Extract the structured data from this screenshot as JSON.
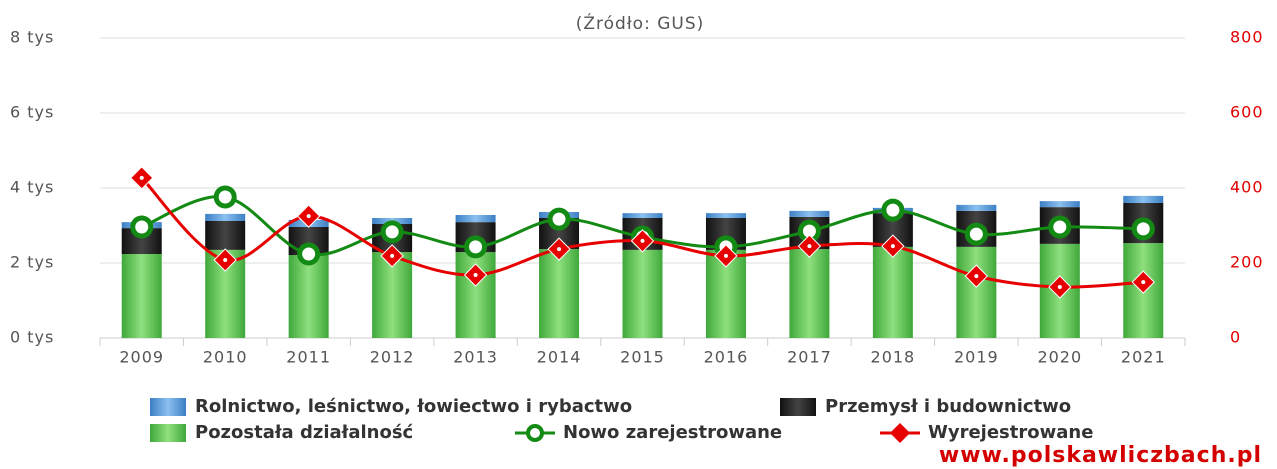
{
  "chart_data": {
    "type": "bar",
    "subtitle": "(Źródło: GUS)",
    "watermark": "www.polskawliczbach.pl",
    "categories": [
      "2009",
      "2010",
      "2011",
      "2012",
      "2013",
      "2014",
      "2015",
      "2016",
      "2017",
      "2018",
      "2019",
      "2020",
      "2021"
    ],
    "ylim": [
      0,
      8000
    ],
    "yticks": [
      {
        "value": 0,
        "label": "0 tys"
      },
      {
        "value": 2000,
        "label": "2 tys"
      },
      {
        "value": 4000,
        "label": "4 tys"
      },
      {
        "value": 6000,
        "label": "6 tys"
      },
      {
        "value": 8000,
        "label": "8 tys"
      }
    ],
    "y2lim": [
      0,
      800
    ],
    "y2ticks": [
      0,
      200,
      400,
      600,
      800
    ],
    "grid": true,
    "series": [
      {
        "name": "Pozostała działalność",
        "type": "bar",
        "color": "#5cc24f",
        "values": [
          2240,
          2350,
          2210,
          2290,
          2290,
          2370,
          2350,
          2350,
          2370,
          2430,
          2430,
          2510,
          2530
        ]
      },
      {
        "name": "Przemysł i budownictwo",
        "type": "bar",
        "color": "#1e1e1e",
        "values": [
          690,
          770,
          750,
          750,
          800,
          830,
          850,
          850,
          860,
          900,
          960,
          980,
          1070
        ]
      },
      {
        "name": "Rolnictwo, leśnictwo, łowiectwo i rybactwo",
        "type": "bar",
        "color": "#5b9bd5",
        "values": [
          160,
          190,
          190,
          160,
          190,
          160,
          130,
          130,
          160,
          140,
          160,
          160,
          190
        ]
      },
      {
        "name": "Nowo zarejestrowane",
        "type": "line",
        "marker": "circle",
        "color": "#138a13",
        "values": [
          2960,
          3760,
          2240,
          2830,
          2430,
          3170,
          2690,
          2430,
          2850,
          3410,
          2770,
          2960,
          2910
        ]
      },
      {
        "name": "Wyrejestrowane",
        "type": "line",
        "marker": "diamond",
        "color": "#e60000",
        "axis": "y2",
        "values": [
          427,
          208,
          325,
          219,
          168,
          237,
          259,
          219,
          245,
          245,
          165,
          136,
          149
        ]
      }
    ]
  }
}
